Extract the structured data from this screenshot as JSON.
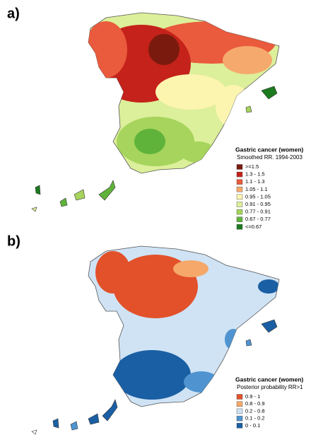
{
  "panels": [
    {
      "label": "a)",
      "legend": {
        "title": "Gastric cancer (women)",
        "subtitle": "Smoothed RR. 1994-2003",
        "items": [
          {
            "text": ">=1.5",
            "color": "#7a1a0e"
          },
          {
            "text": "1.3   -  1.5",
            "color": "#c4221a"
          },
          {
            "text": "1.1   -  1.3",
            "color": "#ea5a3c"
          },
          {
            "text": "1.05  -  1.1",
            "color": "#f6a96c"
          },
          {
            "text": "0.95  -  1.05",
            "color": "#fcf5b0"
          },
          {
            "text": "0.91  -  0.95",
            "color": "#dcef9a"
          },
          {
            "text": "0.77  -  0.91",
            "color": "#a6d45c"
          },
          {
            "text": "0.67  -  0.77",
            "color": "#5fb33a"
          },
          {
            "text": "<=0.67",
            "color": "#1c7a1e"
          }
        ]
      }
    },
    {
      "label": "b)",
      "legend": {
        "title": "Gastric cancer (women)",
        "subtitle": "Posterior probability RR>1",
        "items": [
          {
            "text": "0.9  -  1",
            "color": "#e2512a"
          },
          {
            "text": "0.8  -  0.9",
            "color": "#f5a86a"
          },
          {
            "text": "0.2  -  0.8",
            "color": "#cfe3f5"
          },
          {
            "text": "0.1  -  0.2",
            "color": "#4f94d0"
          },
          {
            "text": "0    -  0.1",
            "color": "#1a5fa3"
          }
        ]
      }
    }
  ]
}
